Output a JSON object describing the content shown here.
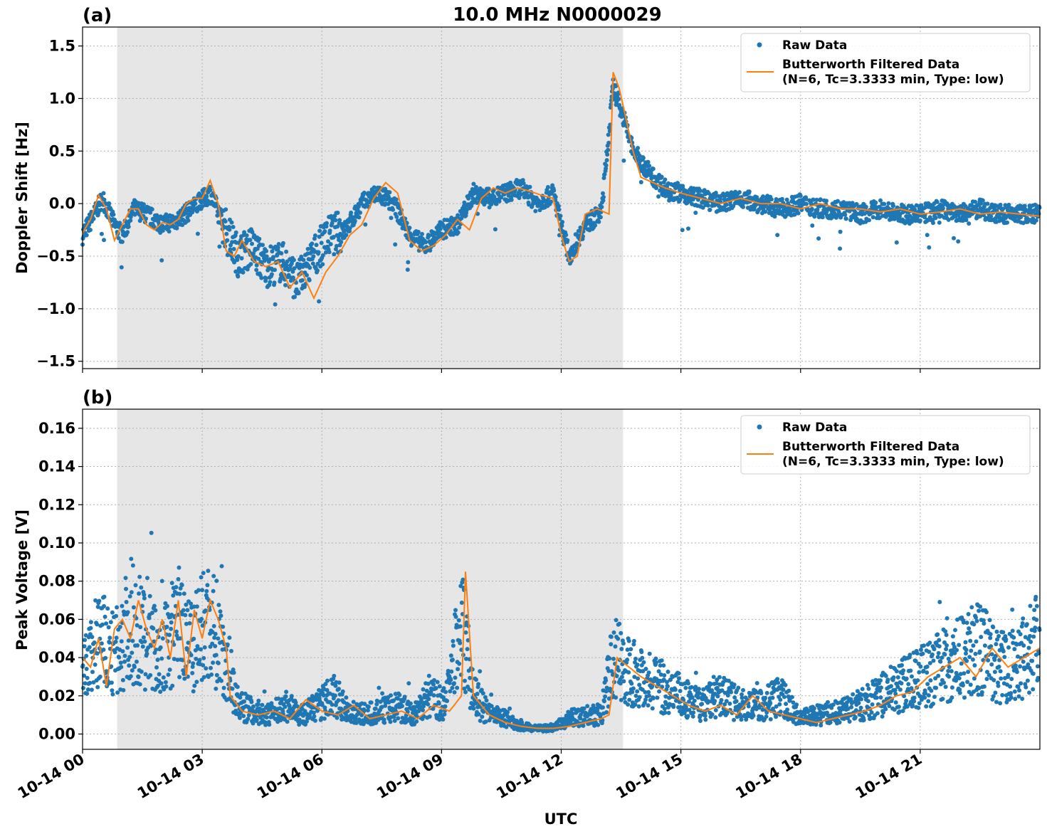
{
  "figure": {
    "title": "10.0 MHz N0000029",
    "xlabel": "UTC"
  },
  "colors": {
    "raw": "#1f77b4",
    "filtered": "#ff7f0e",
    "night_shade": "#e6e6e6",
    "grid": "#b0b0b0"
  },
  "chart_data": [
    {
      "type": "scatter",
      "panel_label": "(a)",
      "ylabel": "Doppler Shift [Hz]",
      "xlim": [
        "10-14 00:00",
        "10-15 00:00"
      ],
      "ylim": [
        -1.57,
        1.68
      ],
      "x_ticks": [
        "10-14 00",
        "10-14 03",
        "10-14 06",
        "10-14 09",
        "10-14 12",
        "10-14 15",
        "10-14 18",
        "10-14 21"
      ],
      "y_ticks": [
        "−1.5",
        "−1.0",
        "−0.5",
        "0.0",
        "0.5",
        "1.0",
        "1.5"
      ],
      "y_tick_values": [
        -1.5,
        -1.0,
        -0.5,
        0.0,
        0.5,
        1.0,
        1.5
      ],
      "shaded_region": [
        "10-14 00:52",
        "10-14 13:33"
      ],
      "grid": true,
      "legend_position": "upper-right",
      "series": [
        {
          "name": "Raw Data",
          "style": "points",
          "hours": [
            0,
            0.3,
            0.5,
            0.8,
            1.0,
            1.3,
            1.6,
            2.0,
            2.4,
            2.9,
            3.2,
            3.6,
            3.9,
            4.2,
            4.6,
            5.0,
            5.4,
            5.8,
            6.2,
            6.6,
            7.0,
            7.4,
            7.8,
            8.2,
            8.6,
            9.0,
            9.4,
            9.8,
            10.2,
            10.6,
            11.0,
            11.4,
            11.8,
            12.2,
            12.6,
            13.0,
            13.3,
            13.5,
            13.8,
            14.2,
            14.6,
            15.0,
            15.5,
            16.0,
            16.5,
            17.0,
            17.5,
            18.0,
            18.5,
            19.0,
            19.5,
            20.0,
            20.5,
            21.0,
            21.5,
            22.0,
            22.5,
            23.0,
            23.5,
            24.0
          ],
          "values": [
            -0.3,
            -0.1,
            0.05,
            -0.2,
            -0.3,
            -0.05,
            -0.1,
            -0.2,
            -0.15,
            0.0,
            0.1,
            -0.25,
            -0.5,
            -0.4,
            -0.6,
            -0.55,
            -0.75,
            -0.5,
            -0.3,
            -0.25,
            0.0,
            0.1,
            0.0,
            -0.3,
            -0.4,
            -0.25,
            -0.2,
            0.1,
            0.05,
            0.1,
            0.15,
            0.0,
            0.1,
            -0.5,
            -0.2,
            -0.1,
            1.1,
            0.9,
            0.5,
            0.3,
            0.15,
            0.1,
            0.05,
            0.0,
            0.05,
            0.0,
            -0.05,
            0.0,
            -0.05,
            -0.05,
            -0.1,
            -0.05,
            -0.1,
            -0.1,
            -0.05,
            -0.1,
            -0.05,
            -0.1,
            -0.1,
            -0.1
          ]
        },
        {
          "name": "Butterworth Filtered Data\n(N=6, Tc=3.3333 min, Type: low)",
          "style": "line",
          "hours": [
            0,
            0.2,
            0.4,
            0.6,
            0.8,
            1.0,
            1.2,
            1.4,
            1.6,
            1.8,
            2.0,
            2.2,
            2.4,
            2.6,
            2.8,
            3.0,
            3.2,
            3.4,
            3.6,
            3.8,
            4.0,
            4.3,
            4.6,
            4.9,
            5.2,
            5.5,
            5.8,
            6.1,
            6.4,
            6.7,
            7.0,
            7.3,
            7.6,
            7.9,
            8.2,
            8.5,
            8.8,
            9.1,
            9.4,
            9.7,
            10.0,
            10.3,
            10.6,
            10.9,
            11.2,
            11.5,
            11.8,
            12.0,
            12.2,
            12.4,
            12.6,
            12.9,
            13.2,
            13.3,
            13.45,
            13.6,
            13.8,
            14.0,
            14.3,
            14.6,
            15.0,
            15.5,
            16.0,
            16.5,
            17.0,
            17.5,
            18.0,
            18.5,
            19.0,
            19.5,
            20.0,
            20.5,
            21.0,
            21.5,
            22.0,
            22.5,
            23.0,
            23.5,
            24.0
          ],
          "values": [
            -0.28,
            -0.15,
            0.08,
            -0.05,
            -0.35,
            -0.2,
            -0.05,
            -0.05,
            -0.2,
            -0.25,
            -0.18,
            -0.2,
            -0.15,
            0.0,
            0.05,
            0.05,
            0.22,
            0.0,
            -0.45,
            -0.5,
            -0.35,
            -0.55,
            -0.6,
            -0.55,
            -0.8,
            -0.65,
            -0.9,
            -0.65,
            -0.5,
            -0.3,
            -0.2,
            0.05,
            0.2,
            0.1,
            -0.35,
            -0.45,
            -0.4,
            -0.3,
            -0.15,
            -0.25,
            0.05,
            0.15,
            0.1,
            0.15,
            0.12,
            0.08,
            0.05,
            -0.3,
            -0.55,
            -0.5,
            -0.1,
            -0.05,
            -0.1,
            1.25,
            1.1,
            0.85,
            0.5,
            0.25,
            0.2,
            0.15,
            0.1,
            0.05,
            0.0,
            0.05,
            0.0,
            0.0,
            -0.05,
            0.0,
            -0.05,
            -0.05,
            -0.08,
            -0.05,
            -0.1,
            -0.08,
            -0.05,
            -0.1,
            -0.08,
            -0.1,
            -0.12
          ]
        }
      ]
    },
    {
      "type": "scatter",
      "panel_label": "(b)",
      "ylabel": "Peak Voltage [V]",
      "xlim": [
        "10-14 00:00",
        "10-15 00:00"
      ],
      "ylim": [
        -0.008,
        0.17
      ],
      "x_ticks": [
        "10-14 00",
        "10-14 03",
        "10-14 06",
        "10-14 09",
        "10-14 12",
        "10-14 15",
        "10-14 18",
        "10-14 21"
      ],
      "y_ticks": [
        "0.00",
        "0.02",
        "0.04",
        "0.06",
        "0.08",
        "0.10",
        "0.12",
        "0.14",
        "0.16"
      ],
      "y_tick_values": [
        0.0,
        0.02,
        0.04,
        0.06,
        0.08,
        0.1,
        0.12,
        0.14,
        0.16
      ],
      "shaded_region": [
        "10-14 00:52",
        "10-14 13:33"
      ],
      "grid": true,
      "legend_position": "upper-right",
      "series": [
        {
          "name": "Raw Data",
          "style": "points",
          "hours": [
            0,
            0.4,
            0.8,
            1.2,
            1.6,
            2.0,
            2.4,
            2.8,
            3.2,
            3.6,
            3.9,
            4.3,
            4.7,
            5.1,
            5.5,
            5.9,
            6.3,
            6.7,
            7.1,
            7.5,
            7.9,
            8.3,
            8.7,
            9.1,
            9.5,
            9.8,
            10.2,
            10.6,
            11.0,
            11.4,
            11.8,
            12.2,
            12.6,
            13.0,
            13.3,
            13.6,
            14.0,
            14.5,
            15.0,
            15.5,
            16.0,
            16.5,
            17.0,
            17.5,
            18.0,
            18.5,
            19.0,
            19.5,
            20.0,
            20.5,
            21.0,
            21.5,
            22.0,
            22.5,
            23.0,
            23.5,
            24.0
          ],
          "values": [
            0.03,
            0.05,
            0.04,
            0.06,
            0.05,
            0.04,
            0.06,
            0.05,
            0.06,
            0.04,
            0.015,
            0.012,
            0.01,
            0.015,
            0.01,
            0.015,
            0.02,
            0.012,
            0.01,
            0.012,
            0.015,
            0.01,
            0.02,
            0.015,
            0.06,
            0.02,
            0.01,
            0.008,
            0.004,
            0.003,
            0.003,
            0.008,
            0.01,
            0.01,
            0.04,
            0.035,
            0.03,
            0.025,
            0.02,
            0.015,
            0.02,
            0.015,
            0.015,
            0.02,
            0.008,
            0.01,
            0.012,
            0.015,
            0.02,
            0.025,
            0.03,
            0.035,
            0.04,
            0.045,
            0.035,
            0.04,
            0.05
          ]
        },
        {
          "name": "Butterworth Filtered Data\n(N=6, Tc=3.3333 min, Type: low)",
          "style": "line",
          "hours": [
            0,
            0.2,
            0.4,
            0.6,
            0.8,
            1.0,
            1.2,
            1.4,
            1.6,
            1.8,
            2.0,
            2.2,
            2.4,
            2.6,
            2.8,
            3.0,
            3.2,
            3.4,
            3.6,
            3.7,
            4.0,
            4.4,
            4.8,
            5.2,
            5.6,
            6.0,
            6.4,
            6.8,
            7.2,
            7.6,
            8.0,
            8.4,
            8.8,
            9.2,
            9.5,
            9.6,
            9.8,
            10.2,
            10.6,
            11.0,
            11.4,
            11.8,
            12.2,
            12.6,
            13.0,
            13.2,
            13.4,
            13.7,
            14.0,
            14.4,
            14.8,
            15.2,
            15.6,
            16.0,
            16.4,
            16.8,
            17.2,
            17.6,
            18.0,
            18.4,
            18.8,
            19.2,
            19.6,
            20.0,
            20.4,
            20.8,
            21.2,
            21.6,
            22.0,
            22.4,
            22.8,
            23.2,
            23.6,
            24.0
          ],
          "values": [
            0.04,
            0.035,
            0.05,
            0.025,
            0.055,
            0.06,
            0.05,
            0.07,
            0.055,
            0.045,
            0.06,
            0.04,
            0.07,
            0.03,
            0.065,
            0.05,
            0.07,
            0.06,
            0.045,
            0.02,
            0.012,
            0.01,
            0.012,
            0.008,
            0.018,
            0.012,
            0.01,
            0.015,
            0.008,
            0.01,
            0.012,
            0.008,
            0.015,
            0.012,
            0.02,
            0.085,
            0.02,
            0.01,
            0.006,
            0.004,
            0.003,
            0.003,
            0.004,
            0.006,
            0.008,
            0.01,
            0.04,
            0.035,
            0.03,
            0.025,
            0.02,
            0.015,
            0.012,
            0.015,
            0.01,
            0.02,
            0.012,
            0.01,
            0.008,
            0.006,
            0.008,
            0.01,
            0.012,
            0.015,
            0.02,
            0.022,
            0.03,
            0.035,
            0.04,
            0.03,
            0.045,
            0.035,
            0.04,
            0.045
          ]
        }
      ]
    }
  ]
}
